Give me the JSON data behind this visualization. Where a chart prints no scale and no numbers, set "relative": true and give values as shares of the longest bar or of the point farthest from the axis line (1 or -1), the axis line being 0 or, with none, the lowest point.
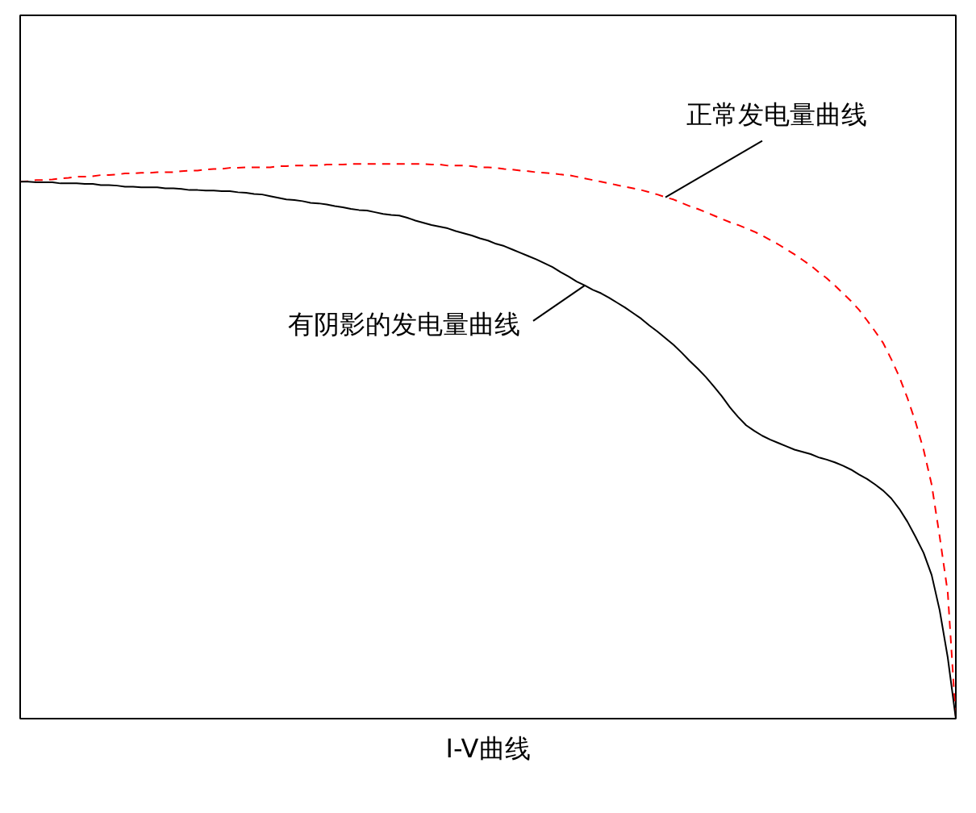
{
  "chart_data": {
    "type": "line",
    "title": "I-V曲线",
    "relative": true,
    "marker": "none",
    "categories": [
      null,
      null,
      null,
      null,
      null,
      null,
      null,
      null,
      null,
      null,
      null,
      null,
      null,
      null,
      null,
      null,
      null,
      null,
      null,
      null,
      null,
      null,
      null,
      null,
      null,
      null,
      null,
      null,
      null,
      null,
      null,
      null,
      null,
      null,
      null,
      null,
      null,
      null,
      null,
      null,
      null,
      null,
      null,
      null,
      null,
      null,
      null,
      null,
      null,
      null,
      null,
      null,
      null,
      null,
      null,
      null,
      null,
      null,
      null,
      null,
      null,
      null,
      null,
      null,
      null,
      null,
      null,
      null,
      null,
      null,
      null,
      null,
      null,
      null,
      null,
      null,
      null,
      null,
      null,
      null,
      null,
      null,
      null,
      null,
      null,
      null,
      null,
      null,
      null,
      null,
      null,
      null,
      null,
      null,
      null,
      null,
      null,
      null,
      null,
      null,
      null,
      null,
      null,
      null,
      null,
      null,
      null,
      null,
      null,
      null,
      null,
      null,
      null,
      null,
      null,
      null,
      null
    ],
    "series": [
      {
        "name": "正常发电量曲线",
        "color": "#ff0000",
        "line_style": "dashed",
        "values": [
          0.968,
          0.969,
          0.971,
          0.971,
          0.972,
          0.974,
          0.975,
          0.977,
          0.977,
          0.978,
          0.98,
          0.98,
          0.981,
          0.983,
          0.983,
          0.984,
          0.984,
          0.985,
          0.985,
          0.985,
          0.987,
          0.988,
          0.988,
          0.99,
          0.991,
          0.991,
          0.993,
          0.993,
          0.994,
          0.994,
          0.994,
          0.994,
          0.996,
          0.996,
          0.997,
          0.997,
          0.997,
          0.997,
          0.999,
          0.999,
          0.999,
          1.0,
          1.0,
          1.0,
          1.0,
          1.0,
          1.0,
          1.0,
          1.0,
          1.0,
          1.0,
          0.999,
          0.999,
          0.997,
          0.997,
          0.997,
          0.996,
          0.994,
          0.994,
          0.993,
          0.991,
          0.99,
          0.988,
          0.987,
          0.985,
          0.984,
          0.983,
          0.981,
          0.98,
          0.977,
          0.974,
          0.971,
          0.968,
          0.965,
          0.962,
          0.959,
          0.956,
          0.953,
          0.949,
          0.945,
          0.94,
          0.936,
          0.93,
          0.924,
          0.919,
          0.913,
          0.907,
          0.901,
          0.895,
          0.89,
          0.884,
          0.878,
          0.871,
          0.863,
          0.855,
          0.846,
          0.837,
          0.827,
          0.817,
          0.805,
          0.794,
          0.781,
          0.767,
          0.753,
          0.737,
          0.718,
          0.698,
          0.677,
          0.648,
          0.616,
          0.578,
          0.535,
          0.485,
          0.422,
          0.328,
          0.227,
          0
        ]
      },
      {
        "name": "有阴影的发电量曲线",
        "color": "#000000",
        "line_style": "solid",
        "values": [
          0.968,
          0.968,
          0.967,
          0.967,
          0.967,
          0.965,
          0.965,
          0.965,
          0.964,
          0.964,
          0.962,
          0.962,
          0.961,
          0.959,
          0.959,
          0.958,
          0.958,
          0.958,
          0.956,
          0.956,
          0.955,
          0.953,
          0.953,
          0.952,
          0.952,
          0.951,
          0.951,
          0.949,
          0.948,
          0.946,
          0.945,
          0.942,
          0.939,
          0.936,
          0.935,
          0.933,
          0.93,
          0.929,
          0.927,
          0.924,
          0.922,
          0.919,
          0.917,
          0.916,
          0.913,
          0.91,
          0.908,
          0.907,
          0.903,
          0.898,
          0.894,
          0.89,
          0.887,
          0.884,
          0.879,
          0.875,
          0.871,
          0.866,
          0.862,
          0.856,
          0.852,
          0.846,
          0.84,
          0.834,
          0.828,
          0.821,
          0.814,
          0.805,
          0.797,
          0.788,
          0.781,
          0.773,
          0.767,
          0.759,
          0.75,
          0.741,
          0.731,
          0.721,
          0.709,
          0.698,
          0.686,
          0.674,
          0.66,
          0.645,
          0.631,
          0.616,
          0.599,
          0.581,
          0.561,
          0.544,
          0.529,
          0.519,
          0.51,
          0.503,
          0.497,
          0.491,
          0.485,
          0.481,
          0.477,
          0.471,
          0.467,
          0.462,
          0.456,
          0.449,
          0.44,
          0.432,
          0.422,
          0.411,
          0.397,
          0.378,
          0.355,
          0.328,
          0.299,
          0.259,
          0.195,
          0.11,
          0
        ]
      }
    ]
  }
}
